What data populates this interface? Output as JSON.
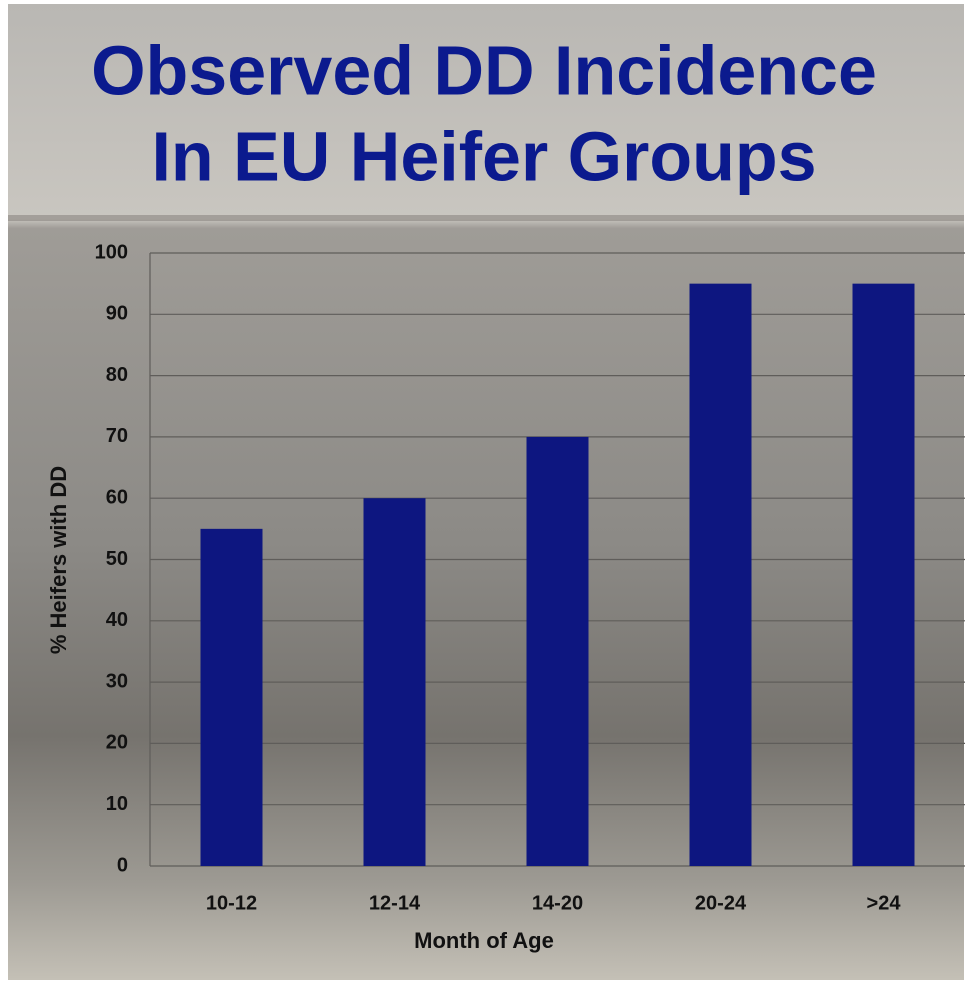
{
  "chart_data": {
    "type": "bar",
    "title": [
      "Observed DD Incidence",
      "In EU Heifer Groups"
    ],
    "x_label": "Month of Age",
    "y_label": "% Heifers with DD",
    "categories": [
      "10-12",
      "12-14",
      "14-20",
      "20-24",
      ">24"
    ],
    "values": [
      55,
      60,
      70,
      95,
      95
    ],
    "color": "#0d1680",
    "ylim": [
      0,
      100
    ],
    "yticks": [
      0,
      10,
      20,
      30,
      40,
      50,
      60,
      70,
      80,
      90,
      100
    ],
    "grid": true
  }
}
